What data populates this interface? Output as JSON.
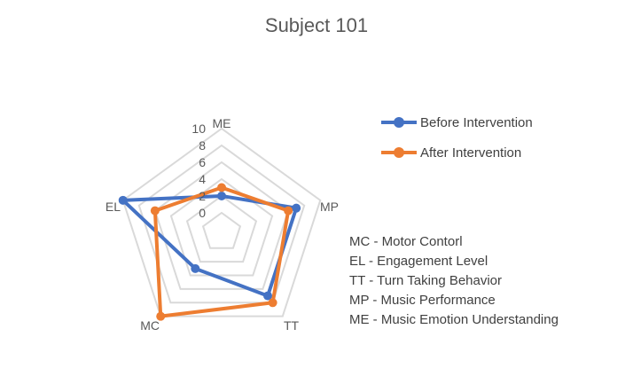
{
  "chart_data": {
    "type": "radar",
    "title": "Subject 101",
    "axes": [
      "ME",
      "MP",
      "TT",
      "MC",
      "EL"
    ],
    "rlim": [
      0,
      10
    ],
    "ticks": [
      "0",
      "2",
      "4",
      "6",
      "8",
      "10"
    ],
    "tick_values": [
      0,
      2,
      4,
      6,
      8,
      10
    ],
    "grid": true,
    "legend_position": "right",
    "series": [
      {
        "name": "Before Intervention",
        "color": "#4472C4",
        "values": [
          2,
          7,
          7,
          3,
          10
        ]
      },
      {
        "name": "After Intervention",
        "color": "#ED7D31",
        "values": [
          3,
          6,
          8,
          10,
          6
        ]
      }
    ],
    "notes": [
      "MC - Motor Contorl",
      "EL - Engagement Level",
      "TT - Turn Taking Behavior",
      "MP - Music Performance",
      "ME - Music Emotion Understanding"
    ]
  }
}
